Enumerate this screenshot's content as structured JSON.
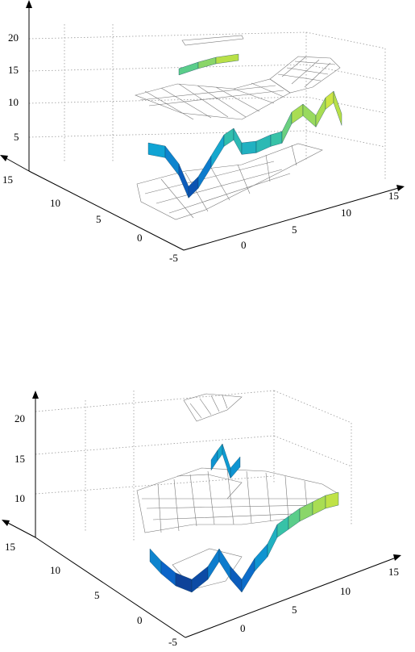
{
  "chart_data": [
    {
      "type": "surface",
      "view": "top",
      "z_ticks": [
        "20",
        "15",
        "10",
        "5"
      ],
      "left_ticks": [
        "15",
        "10",
        "5",
        "0",
        "-5"
      ],
      "right_ticks": [
        "0",
        "5",
        "10",
        "15"
      ],
      "zlim": [
        0,
        22
      ],
      "colormap": [
        "#10206a",
        "#0b64c8",
        "#10a4d4",
        "#3cc6a0",
        "#b8e048",
        "#f2ee3c"
      ],
      "grid": true
    },
    {
      "type": "surface",
      "view": "bottom",
      "z_ticks": [
        "20",
        "15",
        "10"
      ],
      "left_ticks": [
        "15",
        "10",
        "5",
        "0",
        "-5"
      ],
      "right_ticks": [
        "0",
        "5",
        "10",
        "15"
      ],
      "zlim": [
        5,
        22
      ],
      "colormap": [
        "#10206a",
        "#0b64c8",
        "#10a4d4",
        "#3cc6a0",
        "#b8e048",
        "#f2ee3c"
      ],
      "grid": true
    }
  ]
}
